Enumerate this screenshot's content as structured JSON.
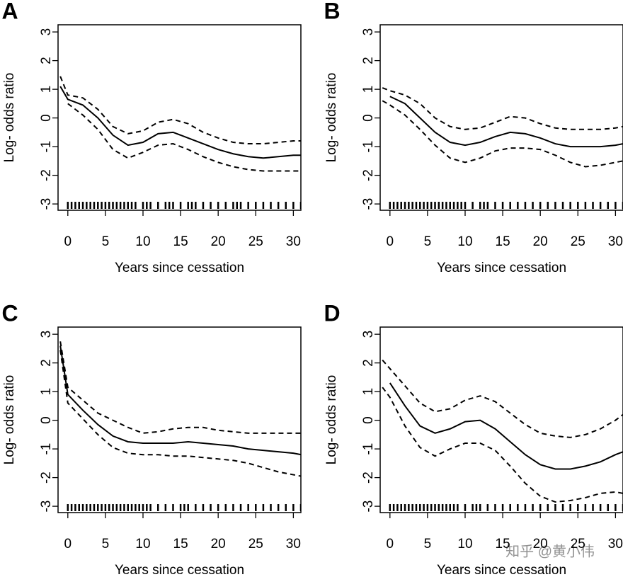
{
  "chart_data": [
    {
      "type": "line",
      "panel": "A",
      "xlabel": "Years since cessation",
      "ylabel": "Log- odds ratio",
      "x": [
        -1,
        0,
        2,
        4,
        6,
        8,
        10,
        12,
        14,
        16,
        18,
        20,
        22,
        24,
        26,
        28,
        30,
        31
      ],
      "xlim": [
        -1.3,
        31
      ],
      "ylim": [
        -3.22,
        3.25
      ],
      "xticks": [
        0,
        5,
        10,
        15,
        20,
        25,
        30
      ],
      "yticks": [
        -3,
        -2,
        -1,
        0,
        1,
        2,
        3
      ],
      "series": [
        {
          "color": "#000000",
          "dashed": false,
          "values": [
            1.1,
            0.65,
            0.45,
            0.0,
            -0.6,
            -0.95,
            -0.85,
            -0.55,
            -0.5,
            -0.7,
            -0.9,
            -1.1,
            -1.25,
            -1.35,
            -1.4,
            -1.35,
            -1.3,
            -1.3
          ]
        },
        {
          "color": "#000000",
          "dashed": true,
          "values": [
            1.45,
            0.8,
            0.7,
            0.3,
            -0.3,
            -0.55,
            -0.45,
            -0.15,
            -0.05,
            -0.2,
            -0.5,
            -0.7,
            -0.85,
            -0.9,
            -0.9,
            -0.85,
            -0.8,
            -0.8
          ]
        },
        {
          "color": "#000000",
          "dashed": true,
          "values": [
            null,
            0.5,
            0.1,
            -0.4,
            -1.1,
            -1.4,
            -1.2,
            -0.95,
            -0.9,
            -1.1,
            -1.35,
            -1.55,
            -1.7,
            -1.8,
            -1.85,
            -1.85,
            -1.85,
            -1.85
          ]
        }
      ],
      "rug": [
        0,
        0.5,
        1,
        1.5,
        2,
        2.5,
        3,
        3.5,
        4,
        4.5,
        5,
        5.5,
        6,
        6.5,
        7,
        7.5,
        8,
        8.5,
        9,
        10,
        10.5,
        11,
        12,
        13,
        13.5,
        14,
        15,
        16,
        16.5,
        17,
        18,
        19,
        20,
        21,
        22,
        22.5,
        23,
        24,
        25,
        26,
        27,
        28,
        29,
        30,
        31
      ]
    },
    {
      "type": "line",
      "panel": "B",
      "xlabel": "Years since cessation",
      "ylabel": "Log- odds ratio",
      "x": [
        -1,
        0,
        2,
        4,
        6,
        8,
        10,
        12,
        14,
        16,
        18,
        20,
        22,
        24,
        26,
        28,
        30,
        31
      ],
      "xlim": [
        -1.3,
        31
      ],
      "ylim": [
        -3.22,
        3.25
      ],
      "xticks": [
        0,
        5,
        10,
        15,
        20,
        25,
        30
      ],
      "yticks": [
        -3,
        -2,
        -1,
        0,
        1,
        2,
        3
      ],
      "series": [
        {
          "color": "#000000",
          "dashed": false,
          "values": [
            null,
            0.75,
            0.5,
            0.0,
            -0.5,
            -0.85,
            -0.95,
            -0.85,
            -0.65,
            -0.5,
            -0.55,
            -0.7,
            -0.9,
            -1.0,
            -1.0,
            -1.0,
            -0.95,
            -0.9
          ]
        },
        {
          "color": "#000000",
          "dashed": true,
          "values": [
            1.05,
            0.95,
            0.8,
            0.5,
            0.0,
            -0.3,
            -0.4,
            -0.35,
            -0.15,
            0.05,
            0.0,
            -0.2,
            -0.35,
            -0.4,
            -0.4,
            -0.4,
            -0.35,
            -0.3
          ]
        },
        {
          "color": "#000000",
          "dashed": true,
          "values": [
            0.6,
            0.45,
            0.1,
            -0.4,
            -0.95,
            -1.4,
            -1.55,
            -1.4,
            -1.15,
            -1.05,
            -1.05,
            -1.1,
            -1.3,
            -1.55,
            -1.7,
            -1.65,
            -1.55,
            -1.5
          ]
        }
      ],
      "rug": [
        0,
        0.5,
        1,
        1.5,
        2,
        2.5,
        3,
        3.5,
        4,
        4.5,
        5,
        5.5,
        6,
        6.5,
        7,
        7.5,
        8,
        8.5,
        9,
        9.5,
        10,
        11,
        12,
        12.5,
        13,
        14,
        15,
        16,
        17,
        18,
        19,
        20,
        21,
        22,
        23,
        24,
        25,
        26,
        27,
        28,
        29,
        30,
        31
      ]
    },
    {
      "type": "line",
      "panel": "C",
      "xlabel": "Years since cessation",
      "ylabel": "Log- odds ratio",
      "x": [
        -1,
        0,
        2,
        4,
        6,
        8,
        10,
        12,
        14,
        16,
        18,
        20,
        22,
        24,
        26,
        28,
        30,
        31
      ],
      "xlim": [
        -1.3,
        31
      ],
      "ylim": [
        -3.22,
        3.25
      ],
      "xticks": [
        0,
        5,
        10,
        15,
        20,
        25,
        30
      ],
      "yticks": [
        -3,
        -2,
        -1,
        0,
        1,
        2,
        3
      ],
      "series": [
        {
          "color": "#000000",
          "dashed": false,
          "values": [
            2.6,
            0.9,
            0.35,
            -0.15,
            -0.55,
            -0.75,
            -0.8,
            -0.8,
            -0.8,
            -0.75,
            -0.8,
            -0.85,
            -0.9,
            -1.0,
            -1.05,
            -1.1,
            -1.15,
            -1.2
          ]
        },
        {
          "color": "#000000",
          "dashed": true,
          "values": [
            2.75,
            1.15,
            0.7,
            0.25,
            0.0,
            -0.25,
            -0.45,
            -0.4,
            -0.3,
            -0.25,
            -0.25,
            -0.35,
            -0.4,
            -0.45,
            -0.45,
            -0.45,
            -0.45,
            -0.45
          ]
        },
        {
          "color": "#000000",
          "dashed": true,
          "values": [
            2.45,
            0.6,
            0.05,
            -0.5,
            -0.95,
            -1.15,
            -1.2,
            -1.2,
            -1.25,
            -1.25,
            -1.3,
            -1.35,
            -1.4,
            -1.5,
            -1.65,
            -1.8,
            -1.9,
            -1.95
          ]
        }
      ],
      "rug": [
        0,
        0.5,
        1,
        1.5,
        2,
        2.5,
        3,
        3.5,
        4,
        4.5,
        5,
        5.5,
        6,
        6.5,
        7,
        7.5,
        8,
        8.5,
        9,
        9.5,
        10,
        10.5,
        11,
        12,
        13,
        14,
        15,
        15.5,
        16,
        17,
        18,
        19,
        20,
        21,
        22,
        23,
        24,
        25,
        26,
        27,
        28,
        29,
        30,
        31
      ]
    },
    {
      "type": "line",
      "panel": "D",
      "xlabel": "Years since cessation",
      "ylabel": "Log- odds ratio",
      "x": [
        -1,
        0,
        2,
        4,
        6,
        8,
        10,
        12,
        14,
        16,
        18,
        20,
        22,
        24,
        26,
        28,
        30,
        31
      ],
      "xlim": [
        -1.3,
        31
      ],
      "ylim": [
        -3.22,
        3.25
      ],
      "xticks": [
        0,
        5,
        10,
        15,
        20,
        25,
        30
      ],
      "yticks": [
        -3,
        -2,
        -1,
        0,
        1,
        2,
        3
      ],
      "series": [
        {
          "color": "#000000",
          "dashed": false,
          "values": [
            null,
            1.3,
            0.5,
            -0.2,
            -0.45,
            -0.3,
            -0.05,
            0.0,
            -0.3,
            -0.75,
            -1.2,
            -1.55,
            -1.7,
            -1.7,
            -1.6,
            -1.45,
            -1.2,
            -1.1
          ]
        },
        {
          "color": "#000000",
          "dashed": true,
          "values": [
            2.1,
            1.8,
            1.2,
            0.6,
            0.3,
            0.4,
            0.7,
            0.85,
            0.65,
            0.25,
            -0.15,
            -0.45,
            -0.55,
            -0.6,
            -0.5,
            -0.3,
            0.0,
            0.2
          ]
        },
        {
          "color": "#000000",
          "dashed": true,
          "values": [
            1.15,
            0.8,
            -0.2,
            -0.95,
            -1.25,
            -1.0,
            -0.8,
            -0.8,
            -1.05,
            -1.6,
            -2.2,
            -2.65,
            -2.85,
            -2.8,
            -2.7,
            -2.55,
            -2.5,
            -2.55
          ]
        }
      ],
      "rug": [
        0,
        0.5,
        1,
        1.5,
        2,
        2.5,
        3,
        3.5,
        4,
        4.5,
        5,
        5.5,
        6,
        6.5,
        7,
        7.5,
        8,
        8.5,
        9,
        10,
        11,
        11.5,
        12,
        13,
        14,
        15,
        16,
        17,
        18,
        19,
        20,
        21,
        22,
        23,
        24,
        25,
        26,
        27,
        28,
        29,
        30,
        31
      ]
    }
  ],
  "watermark": "知乎 @黄小伟"
}
